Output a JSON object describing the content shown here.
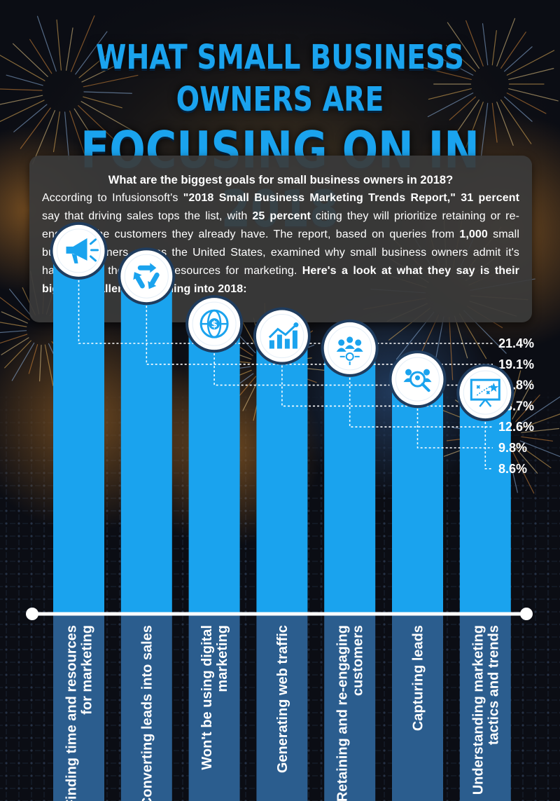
{
  "title": {
    "line1": "WHAT SMALL BUSINESS OWNERS ARE",
    "line2": "FOCUSING ON IN 2018"
  },
  "intro": {
    "question": "What are the biggest goals for small business owners in 2018?",
    "t1": "According to Infusionsoft's ",
    "b1": "\"2018 Small Business Marketing Trends Report,\" 31 percent",
    "t2": " say that driving sales tops the list, with ",
    "b2": "25 percent",
    "t3": " citing they will prioritize retaining or re-engaging the customers they already have. The report, based on queries from ",
    "b3": "1,000",
    "t4": " small business owners across the United States, examined why small business owners admit it's hard to find the time or resources for marketing. ",
    "b4": "Here's a look at what they say is their biggest challenges heading into 2018:"
  },
  "colors": {
    "bar": "#1aa3ee",
    "bar_lower": "#2b5d8e",
    "icon": "#1aa3ee",
    "text": "#ffffff"
  },
  "chart_data": {
    "type": "bar",
    "categories": [
      "Finding time and resources for marketing",
      "Converting leads into sales",
      "Won't be using digital marketing",
      "Generating web traffic",
      "Retaining and re-engaging customers",
      "Capturing leads",
      "Understanding marketing tactics and trends"
    ],
    "category_lines": [
      [
        "Finding time and resources",
        "for marketing"
      ],
      [
        "Converting leads into sales"
      ],
      [
        "Won't be using digital",
        "marketing"
      ],
      [
        "Generating web traffic"
      ],
      [
        "Retaining and re-engaging",
        "customers"
      ],
      [
        "Capturing leads"
      ],
      [
        "Understanding marketing",
        "tactics and trends"
      ]
    ],
    "values": [
      21.4,
      19.1,
      14.8,
      13.7,
      12.6,
      9.8,
      8.6
    ],
    "value_labels": [
      "21.4%",
      "19.1%",
      "14.8%",
      "13.7%",
      "12.6%",
      "9.8%",
      "8.6%"
    ],
    "icons": [
      "megaphone-icon",
      "recycle-icon",
      "globe-dollar-icon",
      "growth-chart-icon",
      "network-people-icon",
      "lead-search-icon",
      "strategy-board-icon"
    ]
  }
}
